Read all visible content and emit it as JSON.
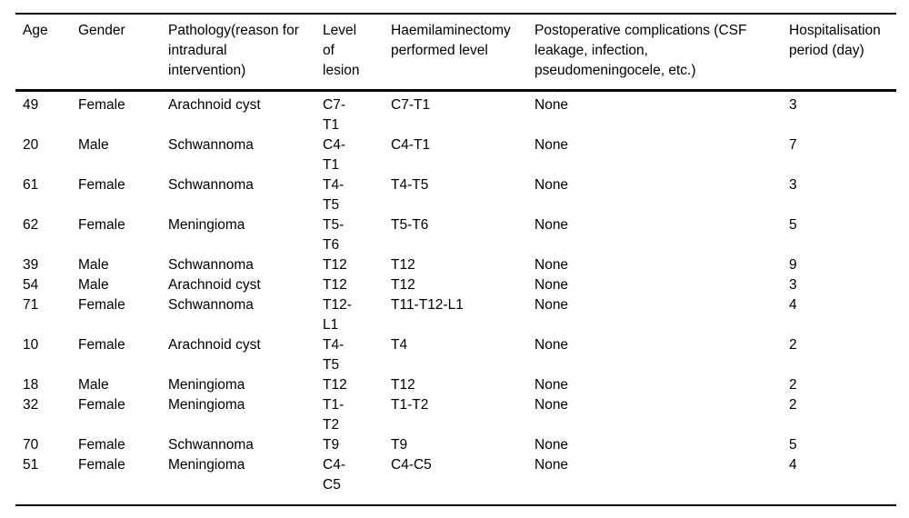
{
  "colors": {
    "background": "#ffffff",
    "text": "#000000",
    "rule": "#000000"
  },
  "table": {
    "columns": [
      {
        "key": "age",
        "label": "Age"
      },
      {
        "key": "gender",
        "label": "Gender"
      },
      {
        "key": "pathology",
        "label": "Pathology(reason for\nintradural\nintervention)"
      },
      {
        "key": "level-of-lesion",
        "label": "Level\nof\nlesion"
      },
      {
        "key": "haemilaminectomy-level",
        "label": "Haemilaminectomy\nperformed level"
      },
      {
        "key": "postoperative-complications",
        "label": "Postoperative complications (CSF\nleakage, infection,\npseudomeningocele, etc.)"
      },
      {
        "key": "hospitalisation-period",
        "label": "Hospitalisation\nperiod (day)"
      }
    ],
    "rows": [
      [
        "49",
        "Female",
        "Arachnoid cyst",
        "C7-\nT1",
        "C7-T1",
        "None",
        "3"
      ],
      [
        "20",
        "Male",
        "Schwannoma",
        "C4-\nT1",
        "C4-T1",
        "None",
        "7"
      ],
      [
        "61",
        "Female",
        "Schwannoma",
        "T4-\nT5",
        "T4-T5",
        "None",
        "3"
      ],
      [
        "62",
        "Female",
        "Meningioma",
        "T5-\nT6",
        "T5-T6",
        "None",
        "5"
      ],
      [
        "39",
        "Male",
        "Schwannoma",
        "T12",
        "T12",
        "None",
        "9"
      ],
      [
        "54",
        "Male",
        "Arachnoid cyst",
        "T12",
        "T12",
        "None",
        "3"
      ],
      [
        "71",
        "Female",
        "Schwannoma",
        "T12-\nL1",
        "T11-T12-L1",
        "None",
        "4"
      ],
      [
        "10",
        "Female",
        "Arachnoid cyst",
        "T4-\nT5",
        "T4",
        "None",
        "2"
      ],
      [
        "18",
        "Male",
        "Meningioma",
        "T12",
        "T12",
        "None",
        "2"
      ],
      [
        "32",
        "Female",
        "Meningioma",
        "T1-\nT2",
        "T1-T2",
        "None",
        "2"
      ],
      [
        "70",
        "Female",
        "Schwannoma",
        "T9",
        "T9",
        "None",
        "5"
      ],
      [
        "51",
        "Female",
        "Meningioma",
        "C4-\nC5",
        "C4-C5",
        "None",
        "4"
      ]
    ]
  }
}
